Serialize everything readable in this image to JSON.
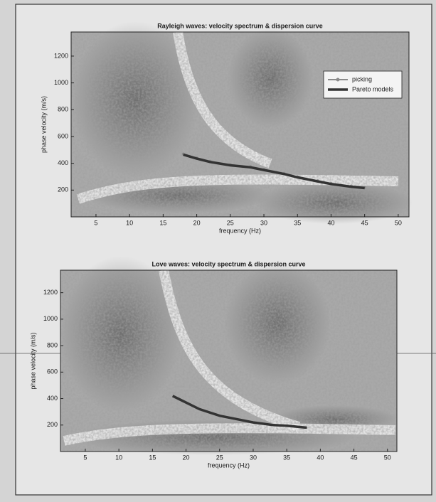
{
  "chart_data": [
    {
      "type": "line",
      "title": "Rayleigh waves: velocity spectrum & dispersion curve",
      "x_label": "frequency (Hz)",
      "y_label": "phase velocity (m/s)",
      "x": [
        18,
        20,
        22,
        25,
        28,
        30,
        33,
        35,
        38,
        40,
        43,
        45
      ],
      "series": [
        {
          "name": "picking",
          "color": "#8a8a8a",
          "values": [
            470,
            440,
            415,
            390,
            375,
            355,
            325,
            300,
            270,
            250,
            230,
            220
          ]
        },
        {
          "name": "Pareto models",
          "color": "#333333",
          "values": [
            465,
            435,
            410,
            385,
            370,
            350,
            320,
            295,
            265,
            245,
            225,
            215
          ]
        }
      ],
      "xlim": [
        1.3,
        51.6
      ],
      "ylim": [
        0,
        1380
      ],
      "xticks": [
        5,
        10,
        15,
        20,
        25,
        30,
        35,
        40,
        45,
        50
      ],
      "yticks": [
        200,
        400,
        600,
        800,
        1000,
        1200
      ],
      "grid": false,
      "legend": "upper right"
    },
    {
      "type": "line",
      "title": "Love waves: velocity spectrum & dispersion curve",
      "x_label": "frequency (Hz)",
      "y_label": "phase velocity (m/s)",
      "x": [
        18,
        20,
        22,
        25,
        28,
        30,
        33,
        35,
        38
      ],
      "series": [
        {
          "color": "#333333",
          "values": [
            420,
            370,
            320,
            270,
            240,
            220,
            200,
            195,
            180
          ]
        }
      ],
      "xlim": [
        1.3,
        51.4
      ],
      "ylim": [
        0,
        1370
      ],
      "xticks": [
        5,
        10,
        15,
        20,
        25,
        30,
        35,
        40,
        45,
        50
      ],
      "yticks": [
        200,
        400,
        600,
        800,
        1000,
        1200
      ],
      "grid": false
    }
  ]
}
